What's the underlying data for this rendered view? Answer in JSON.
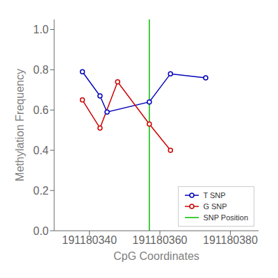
{
  "chart_data": {
    "type": "line",
    "xlabel": "CpG Coordinates",
    "ylabel": "Methylation Frequency",
    "series": [
      {
        "name": "T SNP",
        "color": "#0000bb",
        "marker": "circle",
        "x": [
          191180338,
          191180343,
          191180345,
          191180357,
          191180363,
          191180373
        ],
        "values": [
          0.79,
          0.67,
          0.59,
          0.64,
          0.78,
          0.76
        ]
      },
      {
        "name": "G SNP",
        "color": "#cc0000",
        "marker": "circle",
        "x": [
          191180338,
          191180343,
          191180348,
          191180357,
          191180363
        ],
        "values": [
          0.65,
          0.51,
          0.74,
          0.53,
          0.4
        ]
      },
      {
        "name": "SNP Position",
        "type": "vline",
        "color": "#00bb00",
        "x": 191180357
      }
    ],
    "xlim": [
      191180330,
      191180388
    ],
    "ylim": [
      0.0,
      1.05
    ],
    "xticks": [
      191180340,
      191180360,
      191180380
    ],
    "yticks": [
      {
        "value": 0,
        "label": "0.0"
      },
      0.2,
      0.4,
      0.6,
      0.8,
      {
        "value": 1,
        "label": "1.0"
      }
    ],
    "grid": false,
    "legend": "lower right"
  }
}
